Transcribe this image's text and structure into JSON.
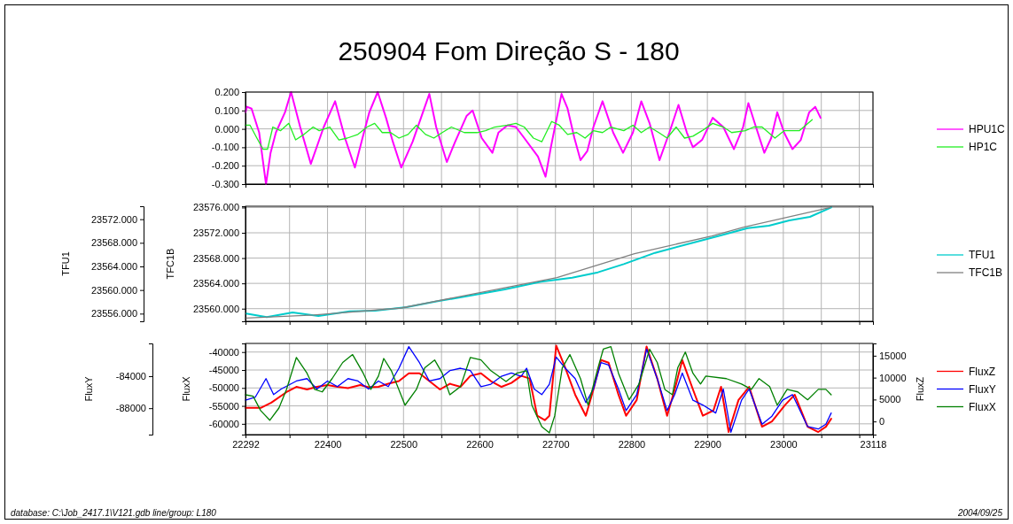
{
  "chart_data": [
    {
      "type": "line",
      "title": "250904 Fom Direção S - 180",
      "xlim": [
        22292,
        23118
      ],
      "xticks": [
        22292,
        {
          "value": 22350,
          "label": null
        },
        22400,
        {
          "value": 22450,
          "label": null
        },
        22500,
        {
          "value": 22550,
          "label": null
        },
        22600,
        {
          "value": 22650,
          "label": null
        },
        22700,
        {
          "value": 22750,
          "label": null
        },
        22800,
        {
          "value": 22850,
          "label": null
        },
        22900,
        {
          "value": 22950,
          "label": null
        },
        23000,
        {
          "value": 23050,
          "label": null
        },
        {
          "value": 23100,
          "label": null
        },
        23118
      ],
      "ylim": [
        -0.3,
        0.2
      ],
      "yticks": [
        {
          "value": -0.3,
          "label": "-0.300"
        },
        {
          "value": -0.2,
          "label": "-0.200"
        },
        {
          "value": -0.1,
          "label": "-0.100"
        },
        {
          "value": 0,
          "label": "0.000"
        },
        {
          "value": 0.1,
          "label": "0.100"
        },
        {
          "value": 0.2,
          "label": "0.200"
        }
      ],
      "grid": true,
      "legend": "right",
      "tick_labels": "y",
      "series": [
        {
          "name": "HPU1C",
          "color": "#ff00ff",
          "x": [
            22292,
            22294,
            22300,
            22310,
            22319,
            22325,
            22332,
            22344,
            22352,
            22364,
            22378,
            22395,
            22410,
            22423,
            22436,
            22446,
            22455,
            22466,
            22477,
            22486,
            22497,
            22512,
            22523,
            22534,
            22543,
            22557,
            22568,
            22583,
            22591,
            22603,
            22617,
            22625,
            22637,
            22648,
            22659,
            22677,
            22687,
            22694,
            22708,
            22716,
            22725,
            22733,
            22742,
            22750,
            22762,
            22776,
            22789,
            22802,
            22813,
            22824,
            22837,
            22850,
            22862,
            22873,
            22881,
            22893,
            22907,
            22921,
            22935,
            22947,
            22954,
            22964,
            22975,
            22984,
            22992,
            23001,
            23012,
            23023,
            23034,
            23042,
            23049
          ],
          "values": [
            0.09,
            0.12,
            0.11,
            -0.02,
            -0.3,
            -0.13,
            -0.02,
            0.09,
            0.2,
            0.01,
            -0.19,
            0.01,
            0.15,
            -0.05,
            -0.21,
            -0.05,
            0.09,
            0.2,
            0.06,
            -0.07,
            -0.21,
            -0.07,
            0.06,
            0.19,
            0.01,
            -0.18,
            -0.07,
            0.07,
            0.1,
            -0.05,
            -0.13,
            -0.02,
            0.02,
            0.01,
            -0.05,
            -0.15,
            -0.26,
            -0.1,
            0.19,
            0.11,
            -0.05,
            -0.17,
            -0.12,
            0.01,
            0.15,
            -0.02,
            -0.13,
            -0.02,
            0.15,
            0.03,
            -0.17,
            -0.02,
            0.13,
            -0.02,
            -0.1,
            -0.06,
            0.06,
            0.01,
            -0.11,
            0.01,
            0.14,
            0.01,
            -0.13,
            -0.05,
            0.09,
            -0.02,
            -0.11,
            -0.06,
            0.09,
            0.12,
            0.06
          ]
        },
        {
          "name": "HP1C",
          "color": "#22ee22",
          "x": [
            22292,
            22298,
            22307,
            22315,
            22321,
            22328,
            22338,
            22349,
            22358,
            22369,
            22381,
            22389,
            22403,
            22415,
            22426,
            22440,
            22452,
            22462,
            22472,
            22483,
            22494,
            22506,
            22517,
            22529,
            22540,
            22551,
            22563,
            22580,
            22597,
            22608,
            22620,
            22637,
            22648,
            22659,
            22671,
            22682,
            22695,
            22705,
            22716,
            22728,
            22739,
            22750,
            22762,
            22773,
            22790,
            22802,
            22813,
            22824,
            22836,
            22847,
            22859,
            22870,
            22881,
            22893,
            22907,
            22921,
            22932,
            22950,
            22961,
            22972,
            22989,
            23001,
            23021,
            23038
          ],
          "values": [
            0.02,
            0.02,
            -0.05,
            -0.11,
            -0.11,
            0.01,
            -0.01,
            0.03,
            -0.06,
            -0.03,
            0.01,
            -0.01,
            0.01,
            -0.06,
            -0.05,
            -0.03,
            0.01,
            0.03,
            -0.02,
            -0.02,
            -0.05,
            -0.03,
            0.02,
            -0.03,
            -0.05,
            -0.02,
            0.01,
            -0.02,
            -0.02,
            -0.01,
            0.01,
            0.02,
            0.03,
            0.01,
            -0.05,
            -0.07,
            0.04,
            0.02,
            -0.03,
            -0.02,
            -0.05,
            -0.01,
            -0.02,
            0.01,
            -0.01,
            0.02,
            -0.02,
            0.01,
            -0.02,
            -0.05,
            0.01,
            -0.05,
            -0.04,
            -0.01,
            0.03,
            0.01,
            -0.02,
            -0.01,
            0.01,
            0.01,
            -0.05,
            -0.01,
            -0.01,
            0.05
          ]
        }
      ]
    },
    {
      "type": "line",
      "xlim": [
        22292,
        23118
      ],
      "xticks": [
        22292,
        {
          "value": 22350,
          "label": null
        },
        22400,
        {
          "value": 22450,
          "label": null
        },
        22500,
        {
          "value": 22550,
          "label": null
        },
        22600,
        {
          "value": 22650,
          "label": null
        },
        22700,
        {
          "value": 22750,
          "label": null
        },
        22800,
        {
          "value": 22850,
          "label": null
        },
        22900,
        {
          "value": 22950,
          "label": null
        },
        23000,
        {
          "value": 23050,
          "label": null
        },
        {
          "value": 23100,
          "label": null
        },
        23118
      ],
      "ylabel": "TFC1B",
      "y2label": "TFU1",
      "ylim": [
        23558,
        23576.2
      ],
      "yticks": [
        {
          "value": 23560,
          "label": "23560.000"
        },
        {
          "value": 23564,
          "label": "23564.000"
        },
        {
          "value": 23568,
          "label": "23568.000"
        },
        {
          "value": 23572,
          "label": "23572.000"
        },
        {
          "value": 23576,
          "label": "23576.000"
        }
      ],
      "y2lim": [
        23554.7,
        23574.2
      ],
      "y2ticks": [
        {
          "value": 23556,
          "label": "23556.000"
        },
        {
          "value": 23560,
          "label": "23560.000"
        },
        {
          "value": 23564,
          "label": "23564.000"
        },
        {
          "value": 23568,
          "label": "23568.000"
        },
        {
          "value": 23572,
          "label": "23572.000"
        }
      ],
      "grid": true,
      "legend": "right",
      "tick_labels": "y",
      "series": [
        {
          "name": "TFU1",
          "color": "#00cccc",
          "axis": "y2",
          "x": [
            22293,
            22320,
            22354,
            22388,
            22429,
            22463,
            22504,
            22545,
            22586,
            22633,
            22681,
            22722,
            22756,
            22790,
            22831,
            22872,
            22913,
            22953,
            22981,
            23008,
            23035,
            23063
          ],
          "values": [
            23556.0,
            23555.4,
            23556.2,
            23555.6,
            23556.4,
            23556.5,
            23557.1,
            23558.1,
            23559.0,
            23560.1,
            23561.4,
            23562.1,
            23563.0,
            23564.4,
            23566.3,
            23567.7,
            23569.1,
            23570.5,
            23570.9,
            23571.8,
            23572.4,
            23574.0
          ]
        },
        {
          "name": "TFC1B",
          "color": "#808080",
          "x": [
            22292,
            22382,
            22497,
            22599,
            22702,
            22804,
            22906,
            22948,
            23062
          ],
          "values": [
            23558.5,
            23559.0,
            23560.1,
            23562.5,
            23564.9,
            23568.7,
            23571.5,
            23572.9,
            23576.0
          ]
        }
      ]
    },
    {
      "type": "line",
      "xlim": [
        22292,
        23118
      ],
      "xticks": [
        22292,
        {
          "value": 22350,
          "label": null
        },
        22400,
        {
          "value": 22450,
          "label": null
        },
        22500,
        {
          "value": 22550,
          "label": null
        },
        22600,
        {
          "value": 22650,
          "label": null
        },
        22700,
        {
          "value": 22750,
          "label": null
        },
        22800,
        {
          "value": 22850,
          "label": null
        },
        22900,
        {
          "value": 22950,
          "label": null
        },
        23000,
        {
          "value": 23050,
          "label": null
        },
        {
          "value": 23100,
          "label": null
        },
        23118
      ],
      "ylabel": "FluxX",
      "y2label": "FluxY",
      "y3label": "FluxZ",
      "ylim": [
        -63000,
        -37600
      ],
      "yticks": [
        -60000,
        -55000,
        -50000,
        -45000,
        -40000
      ],
      "y2lim": [
        -91300,
        -79900
      ],
      "y2ticks": [
        -88000,
        -84000
      ],
      "y3lim": [
        -3000,
        17800
      ],
      "y3ticks": [
        0,
        5000,
        10000,
        15000
      ],
      "grid": true,
      "legend": "right",
      "annotations": [
        "database: C:\\Job_2417.1\\V121.gdb  line/group: L180",
        "2004/09/25"
      ],
      "series": [
        {
          "name": "FluxZ",
          "color": "#ff0000",
          "axis": "y3",
          "x": [
            22292,
            22312,
            22326,
            22346,
            22359,
            22373,
            22386,
            22400,
            22413,
            22427,
            22443,
            22454,
            22467,
            22480,
            22494,
            22507,
            22521,
            22534,
            22548,
            22561,
            22575,
            22588,
            22602,
            22615,
            22629,
            22642,
            22655,
            22666,
            22676,
            22686,
            22692,
            22701,
            22713,
            22726,
            22740,
            22750,
            22760,
            22770,
            22783,
            22793,
            22807,
            22820,
            22834,
            22847,
            22857,
            22867,
            22881,
            22894,
            22908,
            22918,
            22928,
            22941,
            22955,
            22972,
            22985,
            23002,
            23015,
            23032,
            23046,
            23056,
            23063
          ],
          "values": [
            3100,
            3100,
            4300,
            6700,
            7900,
            7300,
            7900,
            8300,
            7900,
            7600,
            8300,
            7800,
            7900,
            8600,
            9200,
            11000,
            11000,
            9200,
            7300,
            8600,
            7900,
            10400,
            11000,
            9200,
            7900,
            8800,
            10400,
            9800,
            1300,
            300,
            1300,
            17300,
            12200,
            6100,
            1300,
            7300,
            14000,
            13400,
            6100,
            1300,
            4900,
            17100,
            9800,
            1300,
            7300,
            14000,
            7300,
            1300,
            2500,
            7900,
            -2400,
            4900,
            7900,
            -1200,
            0,
            3700,
            6100,
            -1200,
            -2400,
            -1200,
            600
          ]
        },
        {
          "name": "FluxY",
          "color": "#0000ff",
          "axis": "y2",
          "x": [
            22292,
            22305,
            22319,
            22329,
            22339,
            22359,
            22373,
            22386,
            22400,
            22413,
            22427,
            22440,
            22454,
            22467,
            22480,
            22494,
            22507,
            22521,
            22534,
            22548,
            22561,
            22575,
            22588,
            22602,
            22615,
            22629,
            22642,
            22655,
            22662,
            22672,
            22682,
            22692,
            22701,
            22713,
            22726,
            22740,
            22750,
            22760,
            22770,
            22783,
            22793,
            22807,
            22820,
            22834,
            22847,
            22857,
            22867,
            22881,
            22894,
            22911,
            22921,
            22931,
            22945,
            22955,
            22972,
            22985,
            22999,
            23012,
            23032,
            23046,
            23056,
            23063
          ],
          "values": [
            -87000,
            -86600,
            -84300,
            -86300,
            -85600,
            -84600,
            -84300,
            -85600,
            -84600,
            -85300,
            -84300,
            -84600,
            -85600,
            -84600,
            -85300,
            -83000,
            -80300,
            -82300,
            -84600,
            -84300,
            -83300,
            -83000,
            -83300,
            -85300,
            -85000,
            -84000,
            -83600,
            -84000,
            -83000,
            -85600,
            -86300,
            -85000,
            -81600,
            -83000,
            -84300,
            -87300,
            -85600,
            -82300,
            -82600,
            -85600,
            -88300,
            -86300,
            -80600,
            -84300,
            -88300,
            -86300,
            -83600,
            -87000,
            -87600,
            -88600,
            -85600,
            -91000,
            -87000,
            -85600,
            -90000,
            -89000,
            -87000,
            -86300,
            -90300,
            -90600,
            -90000,
            -88600
          ]
        },
        {
          "name": "FluxX",
          "color": "#008000",
          "x": [
            22292,
            22302,
            22312,
            22324,
            22336,
            22346,
            22359,
            22373,
            22383,
            22393,
            22406,
            22420,
            22433,
            22447,
            22457,
            22467,
            22474,
            22484,
            22502,
            22517,
            22528,
            22541,
            22551,
            22561,
            22575,
            22588,
            22602,
            22615,
            22635,
            22649,
            22662,
            22669,
            22682,
            22692,
            22699,
            22709,
            22719,
            22733,
            22743,
            22756,
            22763,
            22773,
            22783,
            22797,
            22810,
            22824,
            22834,
            22844,
            22854,
            22861,
            22871,
            22881,
            22891,
            22898,
            22925,
            22945,
            22958,
            22968,
            22982,
            22992,
            23005,
            23019,
            23032,
            23046,
            23056,
            23063
          ],
          "values": [
            -51900,
            -52300,
            -56300,
            -59000,
            -55600,
            -50400,
            -41500,
            -45900,
            -50400,
            -51100,
            -47400,
            -42900,
            -40700,
            -45900,
            -50400,
            -46700,
            -41800,
            -45200,
            -54800,
            -50400,
            -44400,
            -42200,
            -45900,
            -51900,
            -49600,
            -41500,
            -42200,
            -45200,
            -48200,
            -45900,
            -45200,
            -54800,
            -60800,
            -62500,
            -57800,
            -44400,
            -40700,
            -47400,
            -54800,
            -44400,
            -39200,
            -38500,
            -45900,
            -53300,
            -48900,
            -39200,
            -42900,
            -50400,
            -51900,
            -44400,
            -40000,
            -45900,
            -48900,
            -46700,
            -47400,
            -48900,
            -50400,
            -47400,
            -49600,
            -54800,
            -50400,
            -51100,
            -53300,
            -50400,
            -50400,
            -51900
          ]
        }
      ]
    }
  ]
}
